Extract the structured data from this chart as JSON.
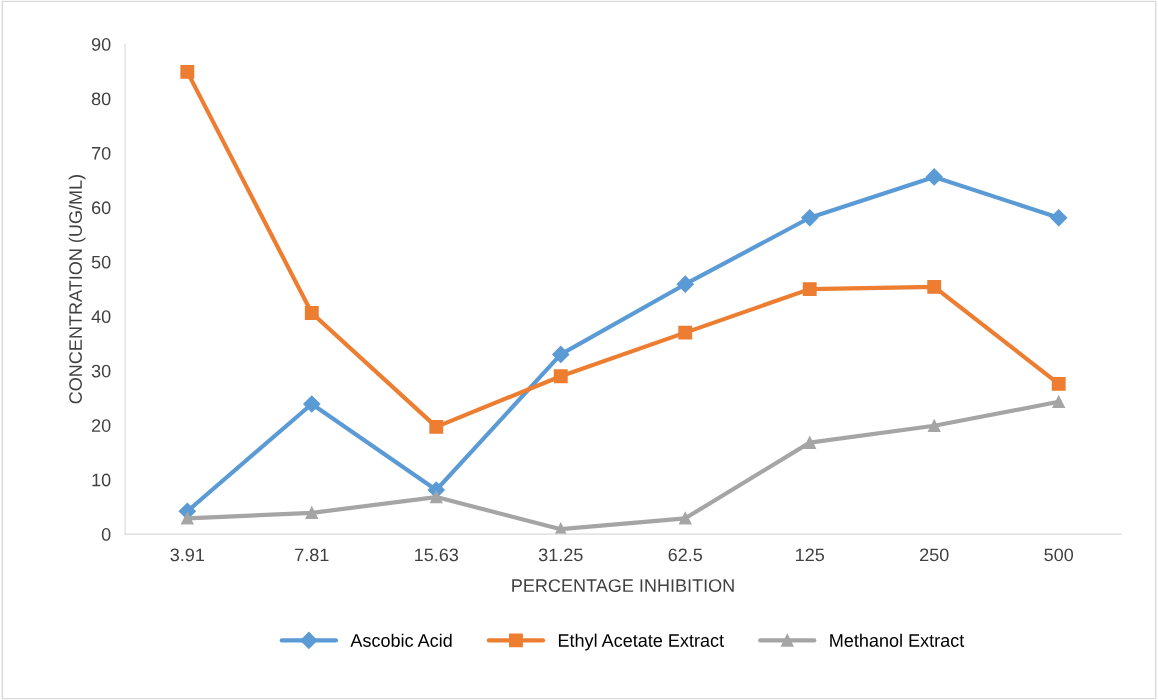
{
  "chart_data": {
    "type": "line",
    "xlabel": "PERCENTAGE INHIBITION",
    "ylabel": "CONCENTRATION (UG/ML)",
    "categories": [
      "3.91",
      "7.81",
      "15.63",
      "31.25",
      "62.5",
      "125",
      "250",
      "500"
    ],
    "ylim": [
      0,
      90
    ],
    "yticks": [
      0,
      10,
      20,
      30,
      40,
      50,
      60,
      70,
      80,
      90
    ],
    "grid": false,
    "legend": "bottom",
    "line_style": "solid",
    "series": [
      {
        "name": "Ascobic Acid",
        "color": "#5b9bd5",
        "marker": "diamond",
        "values": [
          4.2,
          23.9,
          8.1,
          33.0,
          45.9,
          58.1,
          65.6,
          58.1
        ]
      },
      {
        "name": "Ethyl Acetate Extract",
        "color": "#ed7d31",
        "marker": "square",
        "values": [
          84.9,
          40.6,
          19.7,
          29.0,
          37.0,
          45.0,
          45.4,
          27.6
        ]
      },
      {
        "name": "Methanol Extract",
        "color": "#a5a5a5",
        "marker": "triangle",
        "values": [
          2.9,
          3.9,
          6.8,
          0.9,
          2.9,
          16.8,
          19.9,
          24.3
        ]
      }
    ]
  }
}
